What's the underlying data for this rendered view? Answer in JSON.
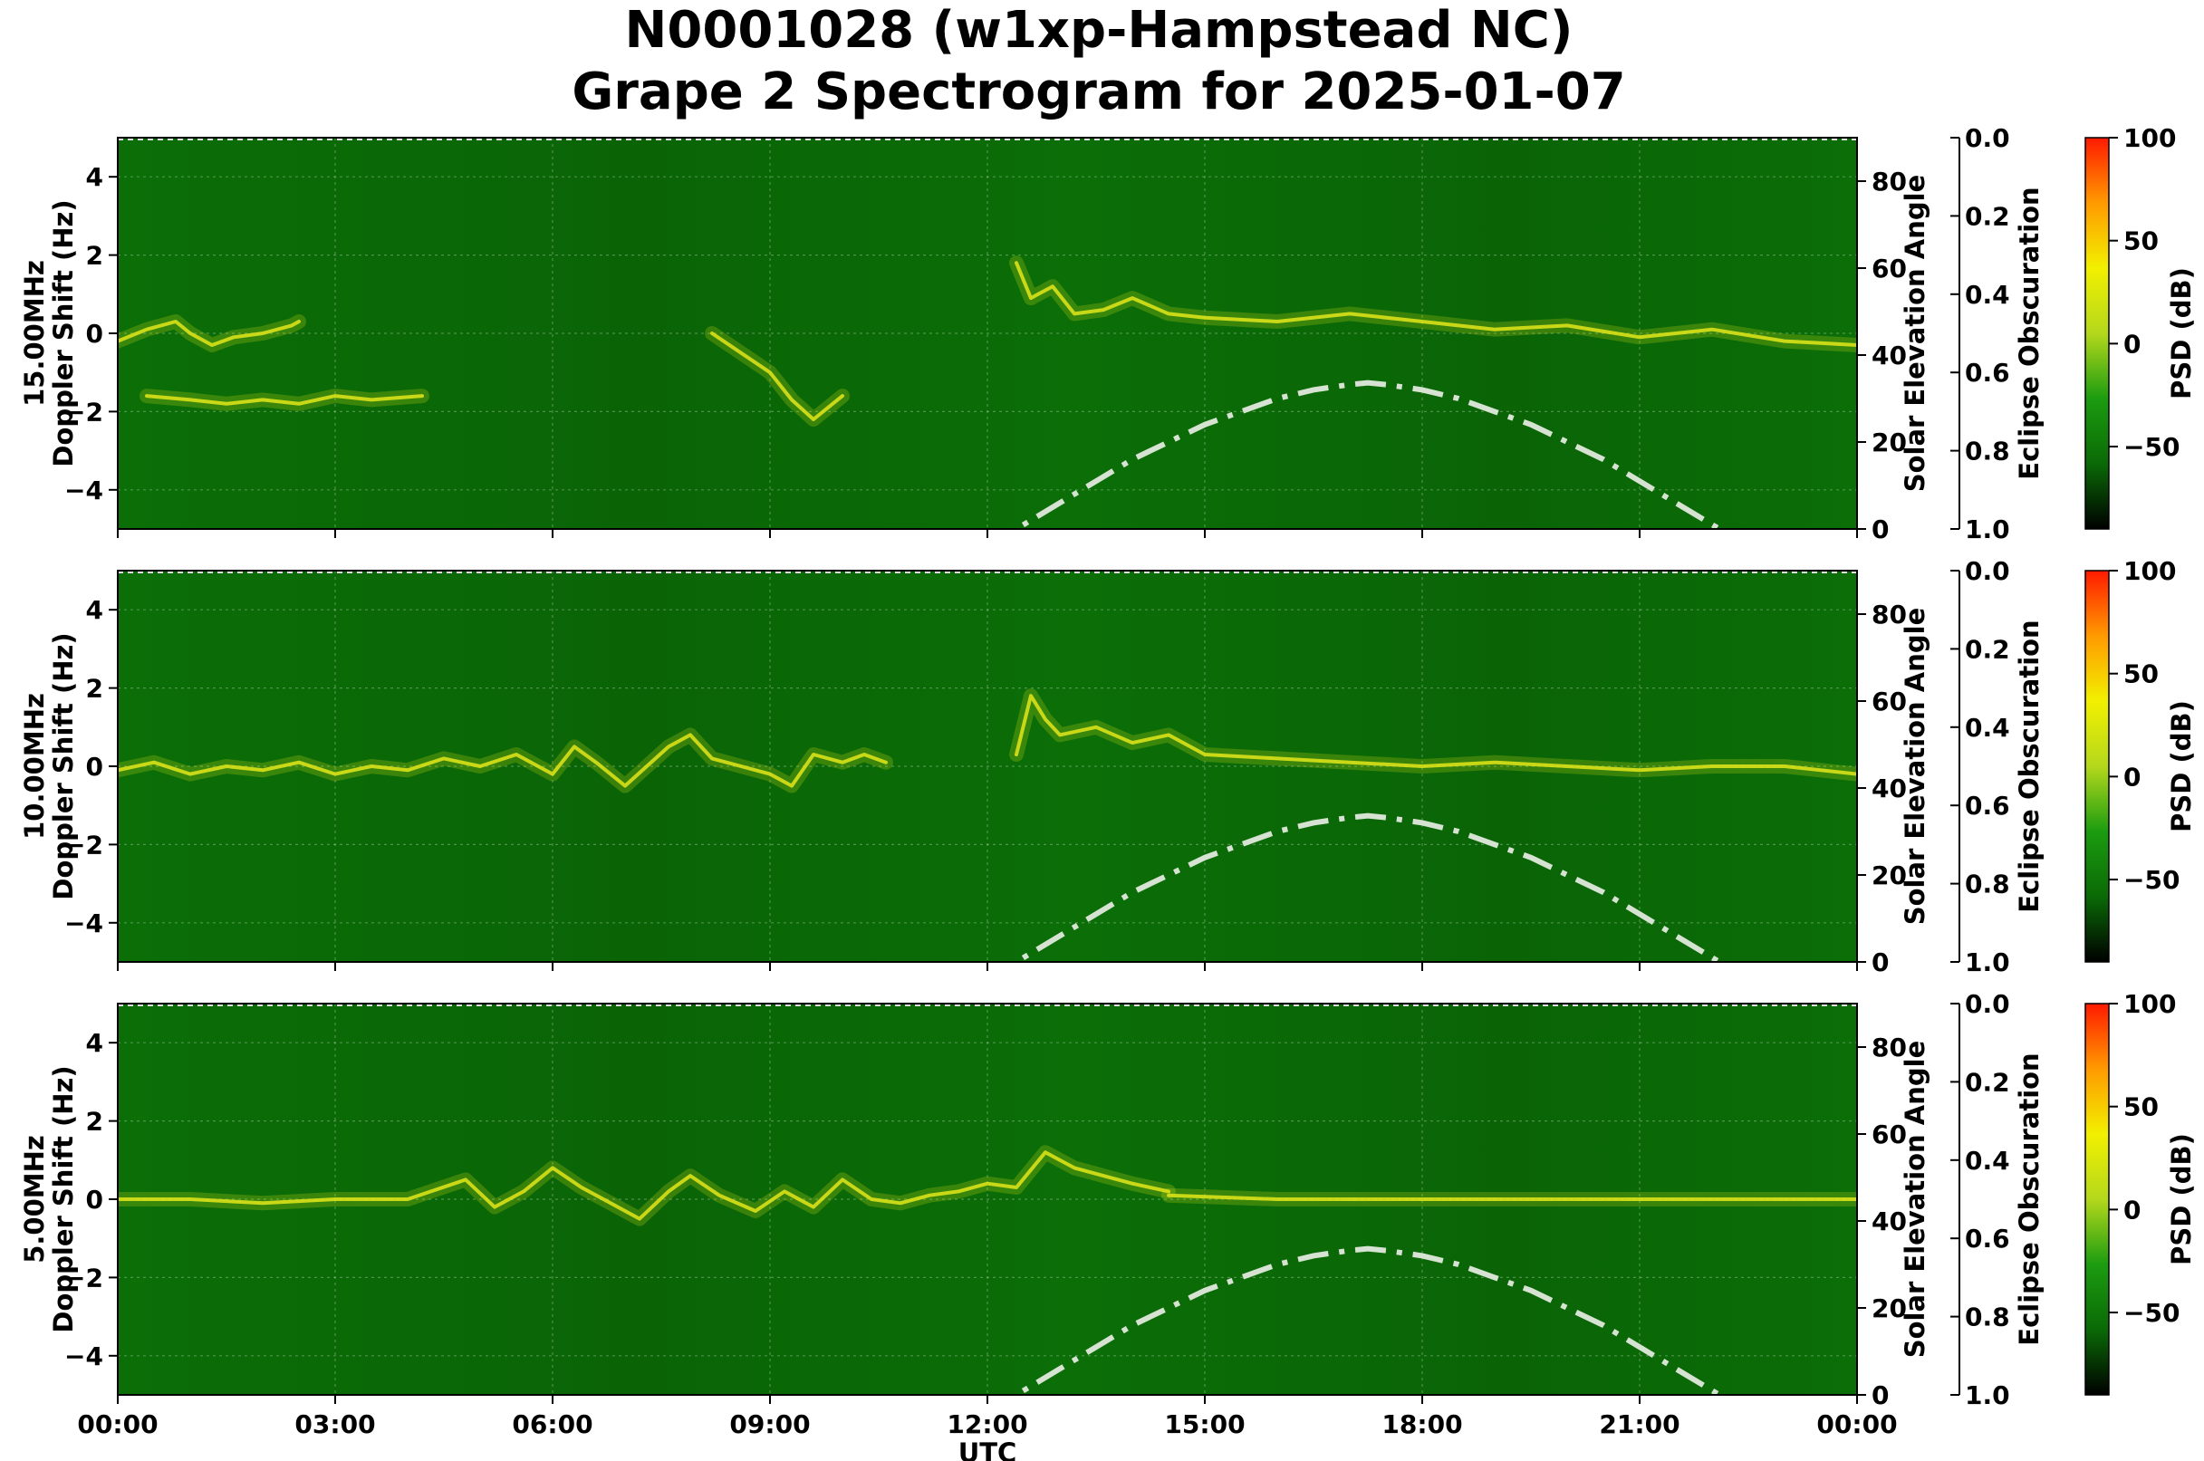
{
  "title_line1": "N0001028 (w1xp-Hampstead NC)",
  "title_line2": "Grape 2 Spectrogram for 2025-01-07",
  "colors": {
    "background": "#0b6e07",
    "background_dark": "#0a6406",
    "trace": "#e3e61a",
    "solar_curve": "#d7e3d2",
    "colorbar_stops": [
      "#000000",
      "#0a6a06",
      "#1c9c10",
      "#b4d81c",
      "#f2f000",
      "#ff9a00",
      "#ff1a00"
    ]
  },
  "chart_data": [
    {
      "type": "heatmap",
      "panel_label": "15.00MHz",
      "ylabel": "Doppler Shift (Hz)",
      "xlabel": "",
      "ylim": [
        -5,
        5
      ],
      "yticks": [
        -4,
        -2,
        0,
        2,
        4
      ],
      "xlim_hours": [
        0,
        24
      ],
      "xticks": [
        "00:00",
        "03:00",
        "06:00",
        "09:00",
        "12:00",
        "15:00",
        "18:00",
        "21:00",
        "00:00"
      ],
      "right_axis": {
        "label": "Solar Elevation Angle",
        "range": [
          0,
          90
        ],
        "ticks": [
          0,
          20,
          40,
          60,
          80
        ]
      },
      "eclipse_axis": {
        "label": "Eclipse Obscuration",
        "range": [
          0.0,
          1.0
        ],
        "ticks": [
          "0.0",
          "0.2",
          "0.4",
          "0.6",
          "0.8",
          "1.0"
        ]
      },
      "colorbar": {
        "label": "PSD (dB)",
        "range": [
          -90,
          100
        ],
        "ticks": [
          -50,
          0,
          50,
          100
        ]
      },
      "grid": true,
      "traces": [
        {
          "x": [
            0,
            0.4,
            0.8,
            1.0,
            1.3,
            1.6,
            2.0,
            2.4,
            2.5
          ],
          "y": [
            -0.2,
            0.1,
            0.3,
            0.0,
            -0.3,
            -0.1,
            0.0,
            0.2,
            0.3
          ]
        },
        {
          "x": [
            0.4,
            1.0,
            1.5,
            2.0,
            2.5,
            3.0,
            3.5,
            4.2
          ],
          "y": [
            -1.6,
            -1.7,
            -1.8,
            -1.7,
            -1.8,
            -1.6,
            -1.7,
            -1.6
          ]
        },
        {
          "x": [
            8.2,
            8.6,
            9.0,
            9.3,
            9.6,
            10.0
          ],
          "y": [
            0.0,
            -0.5,
            -1.0,
            -1.7,
            -2.2,
            -1.6
          ]
        },
        {
          "x": [
            12.4,
            12.6,
            12.9,
            13.2,
            13.6,
            14.0,
            14.5,
            15.0,
            16.0,
            17.0,
            18.0,
            19.0,
            20.0,
            21.0,
            22.0,
            23.0,
            24.0
          ],
          "y": [
            1.8,
            0.9,
            1.2,
            0.5,
            0.6,
            0.9,
            0.5,
            0.4,
            0.3,
            0.5,
            0.3,
            0.1,
            0.2,
            -0.1,
            0.1,
            -0.2,
            -0.3
          ]
        }
      ],
      "solar_elevation": {
        "hours": [
          12.0,
          12.5,
          13.0,
          13.5,
          14.0,
          14.5,
          15.0,
          15.5,
          16.0,
          16.5,
          17.0,
          17.25,
          17.5,
          18.0,
          18.5,
          19.0,
          19.5,
          20.0,
          20.5,
          21.0,
          21.5,
          22.0,
          22.5
        ],
        "degrees": [
          -4,
          1,
          6,
          11,
          16,
          20,
          24,
          27,
          30,
          32,
          33.2,
          33.6,
          33.2,
          32,
          30,
          27,
          24,
          20,
          16,
          11,
          6,
          1,
          -4
        ]
      }
    },
    {
      "type": "heatmap",
      "panel_label": "10.00MHz",
      "ylabel": "Doppler Shift (Hz)",
      "xlabel": "",
      "ylim": [
        -5,
        5
      ],
      "yticks": [
        -4,
        -2,
        0,
        2,
        4
      ],
      "xlim_hours": [
        0,
        24
      ],
      "xticks": [
        "00:00",
        "03:00",
        "06:00",
        "09:00",
        "12:00",
        "15:00",
        "18:00",
        "21:00",
        "00:00"
      ],
      "right_axis": {
        "label": "Solar Elevation Angle",
        "range": [
          0,
          90
        ],
        "ticks": [
          0,
          20,
          40,
          60,
          80
        ]
      },
      "eclipse_axis": {
        "label": "Eclipse Obscuration",
        "range": [
          0.0,
          1.0
        ],
        "ticks": [
          "0.0",
          "0.2",
          "0.4",
          "0.6",
          "0.8",
          "1.0"
        ]
      },
      "colorbar": {
        "label": "PSD (dB)",
        "range": [
          -90,
          100
        ],
        "ticks": [
          -50,
          0,
          50,
          100
        ]
      },
      "grid": true,
      "traces": [
        {
          "x": [
            0,
            0.5,
            1.0,
            1.5,
            2.0,
            2.5,
            3.0,
            3.5,
            4.0,
            4.5,
            5.0,
            5.5,
            6.0,
            6.3,
            6.6,
            7.0,
            7.3,
            7.6,
            7.9,
            8.2,
            8.6,
            9.0,
            9.3,
            9.6,
            10.0,
            10.3,
            10.6
          ],
          "y": [
            -0.1,
            0.1,
            -0.2,
            0.0,
            -0.1,
            0.1,
            -0.2,
            0.0,
            -0.1,
            0.2,
            0.0,
            0.3,
            -0.2,
            0.5,
            0.1,
            -0.5,
            0.0,
            0.5,
            0.8,
            0.2,
            0.0,
            -0.2,
            -0.5,
            0.3,
            0.1,
            0.3,
            0.1
          ]
        },
        {
          "x": [
            12.4,
            12.6,
            12.8,
            13.0,
            13.5,
            14.0,
            14.5,
            15.0,
            16.0,
            17.0,
            18.0,
            19.0,
            20.0,
            21.0,
            22.0,
            23.0,
            24.0
          ],
          "y": [
            0.3,
            1.8,
            1.2,
            0.8,
            1.0,
            0.6,
            0.8,
            0.3,
            0.2,
            0.1,
            0.0,
            0.1,
            0.0,
            -0.1,
            0.0,
            0.0,
            -0.2
          ]
        }
      ],
      "solar_elevation": {
        "hours": [
          12.0,
          12.5,
          13.0,
          13.5,
          14.0,
          14.5,
          15.0,
          15.5,
          16.0,
          16.5,
          17.0,
          17.25,
          17.5,
          18.0,
          18.5,
          19.0,
          19.5,
          20.0,
          20.5,
          21.0,
          21.5,
          22.0,
          22.5
        ],
        "degrees": [
          -4,
          1,
          6,
          11,
          16,
          20,
          24,
          27,
          30,
          32,
          33.2,
          33.6,
          33.2,
          32,
          30,
          27,
          24,
          20,
          16,
          11,
          6,
          1,
          -4
        ]
      }
    },
    {
      "type": "heatmap",
      "panel_label": "5.00MHz",
      "ylabel": "Doppler Shift (Hz)",
      "xlabel": "UTC",
      "ylim": [
        -5,
        5
      ],
      "yticks": [
        -4,
        -2,
        0,
        2,
        4
      ],
      "xlim_hours": [
        0,
        24
      ],
      "xticks": [
        "00:00",
        "03:00",
        "06:00",
        "09:00",
        "12:00",
        "15:00",
        "18:00",
        "21:00",
        "00:00"
      ],
      "right_axis": {
        "label": "Solar Elevation Angle",
        "range": [
          0,
          90
        ],
        "ticks": [
          0,
          20,
          40,
          60,
          80
        ]
      },
      "eclipse_axis": {
        "label": "Eclipse Obscuration",
        "range": [
          0.0,
          1.0
        ],
        "ticks": [
          "0.0",
          "0.2",
          "0.4",
          "0.6",
          "0.8",
          "1.0"
        ]
      },
      "colorbar": {
        "label": "PSD (dB)",
        "range": [
          -90,
          100
        ],
        "ticks": [
          -50,
          0,
          50,
          100
        ]
      },
      "grid": true,
      "traces": [
        {
          "x": [
            0,
            1.0,
            2.0,
            3.0,
            4.0,
            4.8,
            5.2,
            5.6,
            6.0,
            6.4,
            6.8,
            7.2,
            7.6,
            7.9,
            8.3,
            8.8,
            9.2,
            9.6,
            10.0,
            10.4,
            10.8,
            11.2,
            11.6,
            12.0,
            12.4,
            12.8,
            13.2,
            13.6,
            14.0,
            14.5
          ],
          "y": [
            0.0,
            0.0,
            -0.1,
            0.0,
            0.0,
            0.5,
            -0.2,
            0.2,
            0.8,
            0.3,
            -0.1,
            -0.5,
            0.2,
            0.6,
            0.1,
            -0.3,
            0.2,
            -0.2,
            0.5,
            0.0,
            -0.1,
            0.1,
            0.2,
            0.4,
            0.3,
            1.2,
            0.8,
            0.6,
            0.4,
            0.2
          ]
        },
        {
          "x": [
            14.5,
            16.0,
            18.0,
            20.0,
            22.0,
            24.0
          ],
          "y": [
            0.1,
            0.0,
            0.0,
            0.0,
            0.0,
            0.0
          ]
        }
      ],
      "solar_elevation": {
        "hours": [
          12.0,
          12.5,
          13.0,
          13.5,
          14.0,
          14.5,
          15.0,
          15.5,
          16.0,
          16.5,
          17.0,
          17.25,
          17.5,
          18.0,
          18.5,
          19.0,
          19.5,
          20.0,
          20.5,
          21.0,
          21.5,
          22.0,
          22.5
        ],
        "degrees": [
          -4,
          1,
          6,
          11,
          16,
          20,
          24,
          27,
          30,
          32,
          33.2,
          33.6,
          33.2,
          32,
          30,
          27,
          24,
          20,
          16,
          11,
          6,
          1,
          -4
        ]
      }
    }
  ]
}
